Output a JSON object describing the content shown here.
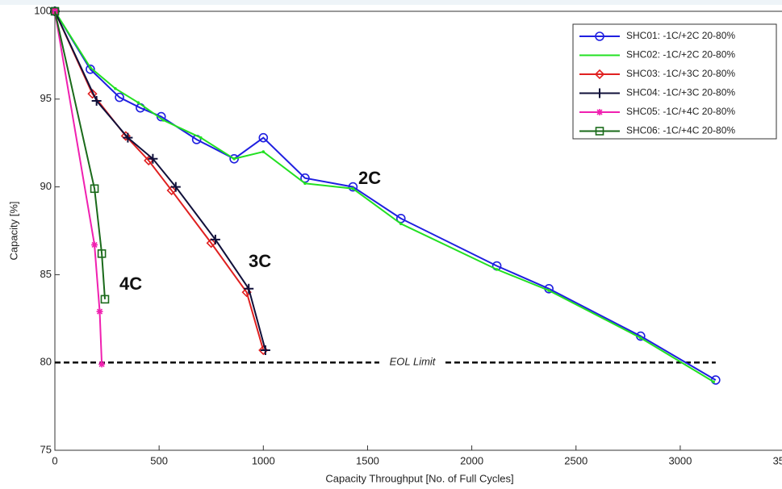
{
  "chart_data": {
    "type": "line",
    "xlabel": "Capacity Throughput [No. of Full Cycles]",
    "ylabel": "Capacity [%]",
    "xlim": [
      0,
      3500
    ],
    "xticks": [
      0,
      500,
      1000,
      1500,
      2000,
      2500,
      3000,
      3500
    ],
    "ylim": [
      75,
      100
    ],
    "yticks": [
      75,
      80,
      85,
      90,
      95,
      100
    ],
    "legend": "upper right",
    "series": [
      {
        "name": "SHC01: -1C/+2C 20-80%",
        "color": "#1f1fe0",
        "marker": "circle",
        "x": [
          0,
          170,
          310,
          410,
          510,
          680,
          860,
          1000,
          1200,
          1430,
          1660,
          2120,
          2370,
          2810,
          3170
        ],
        "values": [
          100,
          96.7,
          95.1,
          94.5,
          94.0,
          92.7,
          91.6,
          92.8,
          90.5,
          90.0,
          88.2,
          85.5,
          84.2,
          81.5,
          79.0
        ]
      },
      {
        "name": "SHC02: -1C/+2C 20-80%",
        "color": "#22e022",
        "marker": "dot",
        "x": [
          0,
          170,
          290,
          400,
          520,
          700,
          860,
          1000,
          1200,
          1430,
          1660,
          2120,
          2370,
          2810,
          3160
        ],
        "values": [
          100,
          96.8,
          95.6,
          94.8,
          93.8,
          92.8,
          91.6,
          92.0,
          90.2,
          89.9,
          87.9,
          85.3,
          84.1,
          81.4,
          78.9
        ]
      },
      {
        "name": "SHC03: -1C/+3C 20-80%",
        "color": "#e02020",
        "marker": "diamond",
        "x": [
          0,
          180,
          340,
          450,
          560,
          750,
          920,
          1000
        ],
        "values": [
          100,
          95.3,
          92.9,
          91.5,
          89.8,
          86.8,
          84.0,
          80.7
        ]
      },
      {
        "name": "SHC04: -1C/+3C 20-80%",
        "color": "#10103a",
        "marker": "plus",
        "x": [
          0,
          200,
          350,
          470,
          580,
          770,
          930,
          1010
        ],
        "values": [
          100,
          94.9,
          92.8,
          91.6,
          90.0,
          87.0,
          84.2,
          80.7
        ]
      },
      {
        "name": "SHC05: -1C/+4C 20-80%",
        "color": "#f020b0",
        "marker": "star",
        "x": [
          0,
          190,
          215,
          225
        ],
        "values": [
          100,
          86.7,
          82.9,
          79.9
        ]
      },
      {
        "name": "SHC06: -1C/+4C 20-80%",
        "color": "#1a6a1a",
        "marker": "square",
        "x": [
          0,
          190,
          225,
          240
        ],
        "values": [
          100,
          89.9,
          86.2,
          83.6
        ]
      }
    ],
    "reference_line": {
      "label": "EOL Limit",
      "value": 80
    },
    "annotations": [
      "2C",
      "3C",
      "4C"
    ]
  }
}
